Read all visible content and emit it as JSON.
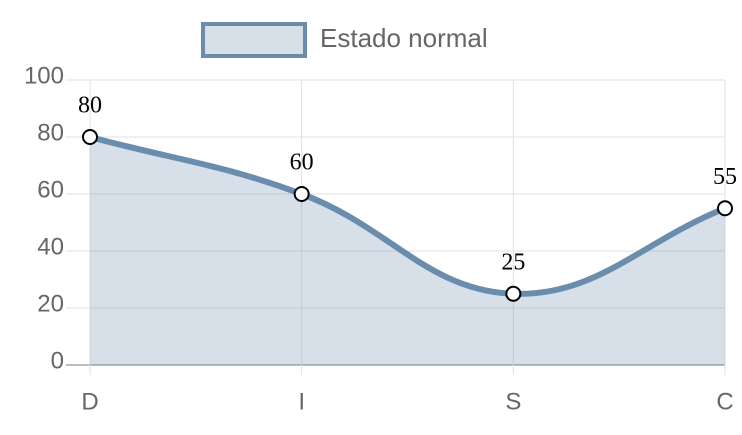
{
  "chart_data": {
    "type": "line",
    "categories": [
      "D",
      "I",
      "S",
      "C"
    ],
    "series": [
      {
        "name": "Estado normal",
        "color": "#6a8cad",
        "fill": "rgba(106,140,173,0.27)",
        "values": [
          80,
          60,
          25,
          55
        ]
      }
    ],
    "ylim": [
      0,
      100
    ],
    "yticks": [
      0,
      20,
      40,
      60,
      80,
      100
    ],
    "grid": true
  }
}
